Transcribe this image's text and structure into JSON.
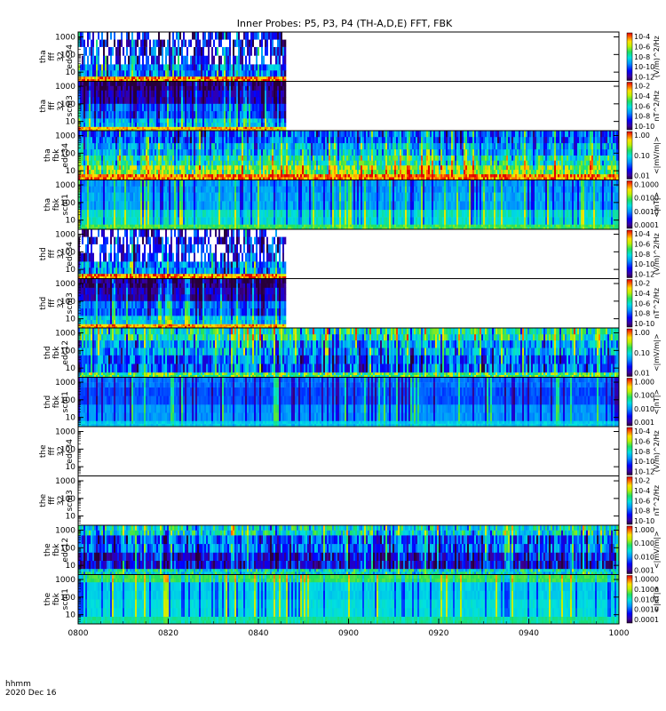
{
  "chart_data": {
    "type": "heatmap",
    "title": "Inner Probes: P5, P3, P4 (TH-A,D,E) FFT, FBK",
    "x_ticks": [
      "0800",
      "0820",
      "0840",
      "0900",
      "0920",
      "0940",
      "1000"
    ],
    "x_tick_minutes": [
      0,
      20,
      40,
      60,
      80,
      100,
      120
    ],
    "x_range_minutes": [
      0,
      120
    ],
    "y_ticks": [
      "10",
      "100",
      "1000"
    ],
    "y_tick_values": [
      10,
      100,
      1000
    ],
    "ylim": [
      3,
      1900
    ],
    "yscale": "log",
    "footer_label": "hhmm",
    "footer_date": "2020 Dec 16",
    "panels": [
      {
        "probe": "tha",
        "product": "fff_32",
        "var": "edc34",
        "ylabel": [
          "tha",
          "fff",
          "32",
          "edc34"
        ],
        "cb_label": "(V/m)^2/Hz",
        "cb_ticks": [
          "10^-4",
          "10^-6",
          "10^-8",
          "10^-10",
          "10^-12"
        ],
        "data_end_minute": 46,
        "scheme": "fffE",
        "seed": 11
      },
      {
        "probe": "tha",
        "product": "fff_32",
        "var": "scm3",
        "ylabel": [
          "tha",
          "fff",
          "32",
          "scm3"
        ],
        "cb_label": "nT^2/Hz",
        "cb_ticks": [
          "10^-2",
          "10^-4",
          "10^-6",
          "10^-8",
          "10^-10"
        ],
        "data_end_minute": 46,
        "scheme": "fffB",
        "seed": 23
      },
      {
        "probe": "tha",
        "product": "fbk",
        "var": "edc34",
        "ylabel": [
          "tha",
          "fbk",
          "edc34"
        ],
        "cb_label": "<|mV/m|>",
        "cb_ticks": [
          "1.00",
          "0.10",
          "0.01"
        ],
        "data_end_minute": 120,
        "scheme": "fbkE",
        "seed": 37
      },
      {
        "probe": "tha",
        "product": "fbk",
        "var": "scm1",
        "ylabel": [
          "tha",
          "fbk",
          "scm1"
        ],
        "cb_label": "<|nT|>",
        "cb_ticks": [
          "0.1000",
          "0.0100",
          "0.0010",
          "0.0001"
        ],
        "data_end_minute": 120,
        "scheme": "fbkB",
        "seed": 41
      },
      {
        "probe": "thd",
        "product": "fff_32",
        "var": "edc34",
        "ylabel": [
          "thd",
          "fff",
          "32",
          "edc34"
        ],
        "cb_label": "(V/m)^2/Hz",
        "cb_ticks": [
          "10^-4",
          "10^-6",
          "10^-8",
          "10^-10",
          "10^-12"
        ],
        "data_end_minute": 46,
        "scheme": "fffE",
        "seed": 53
      },
      {
        "probe": "thd",
        "product": "fff_32",
        "var": "scm3",
        "ylabel": [
          "thd",
          "fff",
          "32",
          "scm3"
        ],
        "cb_label": "nT^2/Hz",
        "cb_ticks": [
          "10^-2",
          "10^-4",
          "10^-6",
          "10^-8",
          "10^-10"
        ],
        "data_end_minute": 46,
        "scheme": "fffB",
        "seed": 61
      },
      {
        "probe": "thd",
        "product": "fbk",
        "var": "edc12",
        "ylabel": [
          "thd",
          "fbk",
          "edc12"
        ],
        "cb_label": "<|mV/m|>",
        "cb_ticks": [
          "1.00",
          "0.10",
          "0.01"
        ],
        "data_end_minute": 120,
        "scheme": "fbkE2",
        "seed": 71
      },
      {
        "probe": "thd",
        "product": "fbk",
        "var": "scm1",
        "ylabel": [
          "thd",
          "fbk",
          "scm1"
        ],
        "cb_label": "<|nT|>",
        "cb_ticks": [
          "1.000",
          "0.100",
          "0.010",
          "0.001"
        ],
        "data_end_minute": 120,
        "scheme": "fbkB2",
        "seed": 83
      },
      {
        "probe": "the",
        "product": "fff_32",
        "var": "edc34",
        "ylabel": [
          "the",
          "fff",
          "32",
          "edc34"
        ],
        "cb_label": "(V/m)^2/Hz",
        "cb_ticks": [
          "10^-4",
          "10^-6",
          "10^-8",
          "10^-10",
          "10^-12"
        ],
        "data_end_minute": 0,
        "scheme": "none",
        "seed": 0
      },
      {
        "probe": "the",
        "product": "fff_32",
        "var": "scm3",
        "ylabel": [
          "the",
          "fff",
          "32",
          "scm3"
        ],
        "cb_label": "nT^2/Hz",
        "cb_ticks": [
          "10^-2",
          "10^-4",
          "10^-6",
          "10^-8",
          "10^-10"
        ],
        "data_end_minute": 0,
        "scheme": "none",
        "seed": 0
      },
      {
        "probe": "the",
        "product": "fbk",
        "var": "edc12",
        "ylabel": [
          "the",
          "fbk",
          "edc12"
        ],
        "cb_label": "<|mV/m|>",
        "cb_ticks": [
          "1.000",
          "0.100",
          "0.010",
          "0.001"
        ],
        "data_end_minute": 120,
        "scheme": "fbkE3",
        "seed": 97
      },
      {
        "probe": "the",
        "product": "fbk",
        "var": "scm1",
        "ylabel": [
          "the",
          "fbk",
          "scm1"
        ],
        "cb_label": "<|nT|>",
        "cb_ticks": [
          "1.0000",
          "0.1000",
          "0.0100",
          "0.0010",
          "0.0001"
        ],
        "data_end_minute": 120,
        "scheme": "fbkB3",
        "seed": 101
      }
    ]
  }
}
